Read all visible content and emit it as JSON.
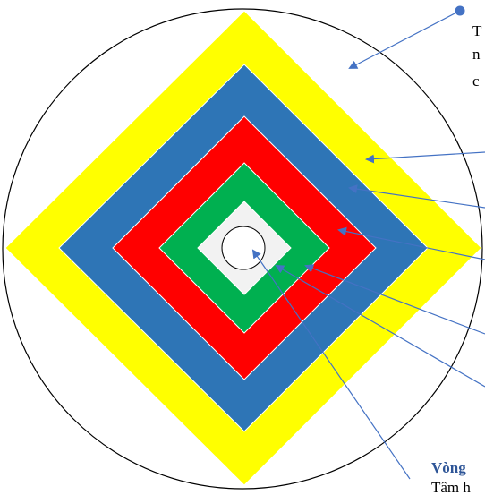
{
  "colors": {
    "circle_outline": "#000000",
    "yellow": "#FFFF00",
    "blue": "#2E75B6",
    "red": "#FF0000",
    "green": "#00B050",
    "center_square": "#F2F2F2",
    "center_circle": "#FFFFFF",
    "arrow": "#4472C4",
    "label_highlight": "#2E5597"
  },
  "labels": {
    "cut_top_1": "T",
    "cut_top_2": "n",
    "cut_top_3": "c",
    "cut_bottom_title": "Vòng",
    "cut_bottom_text": "Tâm h"
  }
}
